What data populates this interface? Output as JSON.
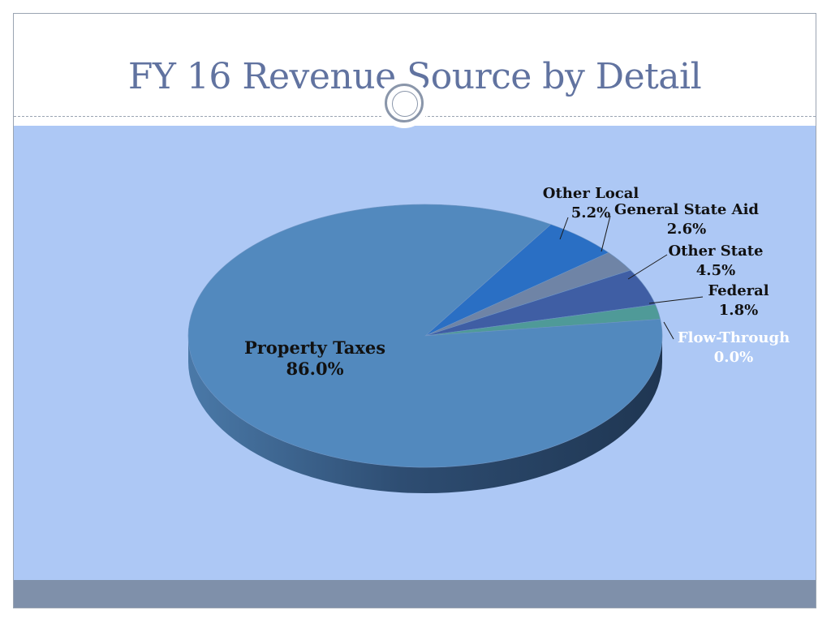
{
  "slide": {
    "title": "FY 16 Revenue Source by Detail"
  },
  "chart_data": {
    "type": "pie",
    "title": "",
    "slices": [
      {
        "label": "Other Local",
        "value": 5.2,
        "display": "5.2%",
        "color": "#2a6fc4"
      },
      {
        "label": "General State Aid",
        "value": 2.6,
        "display": "2.6%",
        "color": "#6f84a6"
      },
      {
        "label": "Other State",
        "value": 4.5,
        "display": "4.5%",
        "color": "#3f5ea4"
      },
      {
        "label": "Federal",
        "value": 1.8,
        "display": "1.8%",
        "color": "#4f9a98"
      },
      {
        "label": "Flow-Through",
        "value": 0.0,
        "display": "0.0%",
        "color": "#9ab0d4"
      },
      {
        "label": "Property Taxes",
        "value": 86.0,
        "display": "86.0%",
        "color": "#5289be"
      }
    ],
    "style": "3d-tilted",
    "legend": "none (data labels)"
  },
  "colors": {
    "title": "#6173a0",
    "content_background": "#adc8f5",
    "footer_bar": "#7f90aa",
    "label_dark": "#111111",
    "label_light": "#ffffff"
  }
}
